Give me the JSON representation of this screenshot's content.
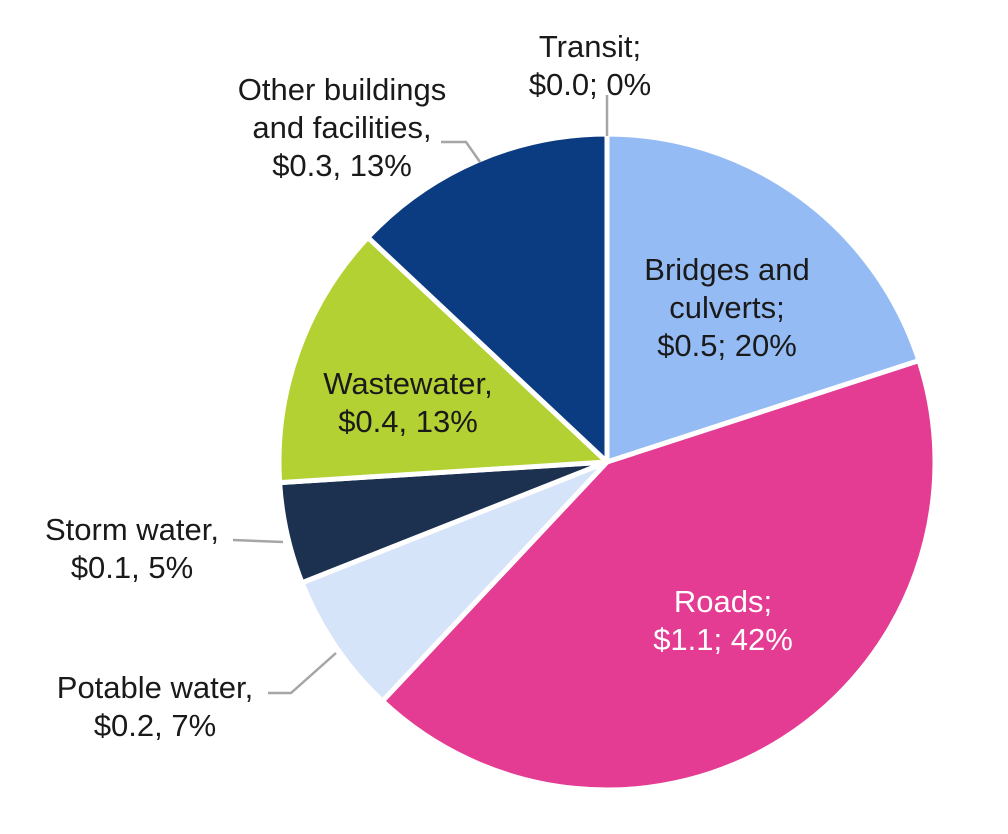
{
  "chart_data": {
    "type": "pie",
    "slices": [
      {
        "name": "Transit",
        "value": 0.0,
        "percent": 0,
        "value_text": "$0.0;",
        "percent_text": "0%",
        "lines": [
          "Transit;",
          "$0.0; 0%"
        ],
        "color": "#9fc5f8"
      },
      {
        "name": "Bridges and culverts",
        "value": 0.5,
        "percent": 20,
        "lines": [
          "Bridges and",
          "culverts;",
          "$0.5; 20%"
        ],
        "color": "#95bbf4"
      },
      {
        "name": "Roads",
        "value": 1.1,
        "percent": 42,
        "lines": [
          "Roads;",
          "$1.1; 42%"
        ],
        "color": "#e43b93"
      },
      {
        "name": "Potable water",
        "value": 0.2,
        "percent": 7,
        "lines": [
          "Potable water,",
          "$0.2, 7%"
        ],
        "color": "#d5e4f9"
      },
      {
        "name": "Storm water",
        "value": 0.1,
        "percent": 5,
        "lines": [
          "Storm water,",
          "$0.1, 5%"
        ],
        "color": "#1c304f"
      },
      {
        "name": "Wastewater",
        "value": 0.4,
        "percent": 13,
        "lines": [
          "Wastewater,",
          "$0.4, 13%"
        ],
        "color": "#b3d133"
      },
      {
        "name": "Other buildings and facilities",
        "value": 0.3,
        "percent": 13,
        "lines": [
          "Other buildings",
          "and facilities,",
          "$0.3, 13%"
        ],
        "color": "#0b3b80"
      }
    ],
    "label_colors": {
      "Transit": "#1a1a1a",
      "Bridges and culverts": "#1a1a1a",
      "Roads": "#ffffff",
      "Potable water": "#1a1a1a",
      "Storm water": "#1a1a1a",
      "Wastewater": "#1a1a1a",
      "Other buildings and facilities": "#1a1a1a"
    },
    "leader_line_color": "#a6a6a6",
    "separator_color": "#ffffff",
    "start_angle": "12 o'clock",
    "direction": "clockwise",
    "legend": "none"
  }
}
